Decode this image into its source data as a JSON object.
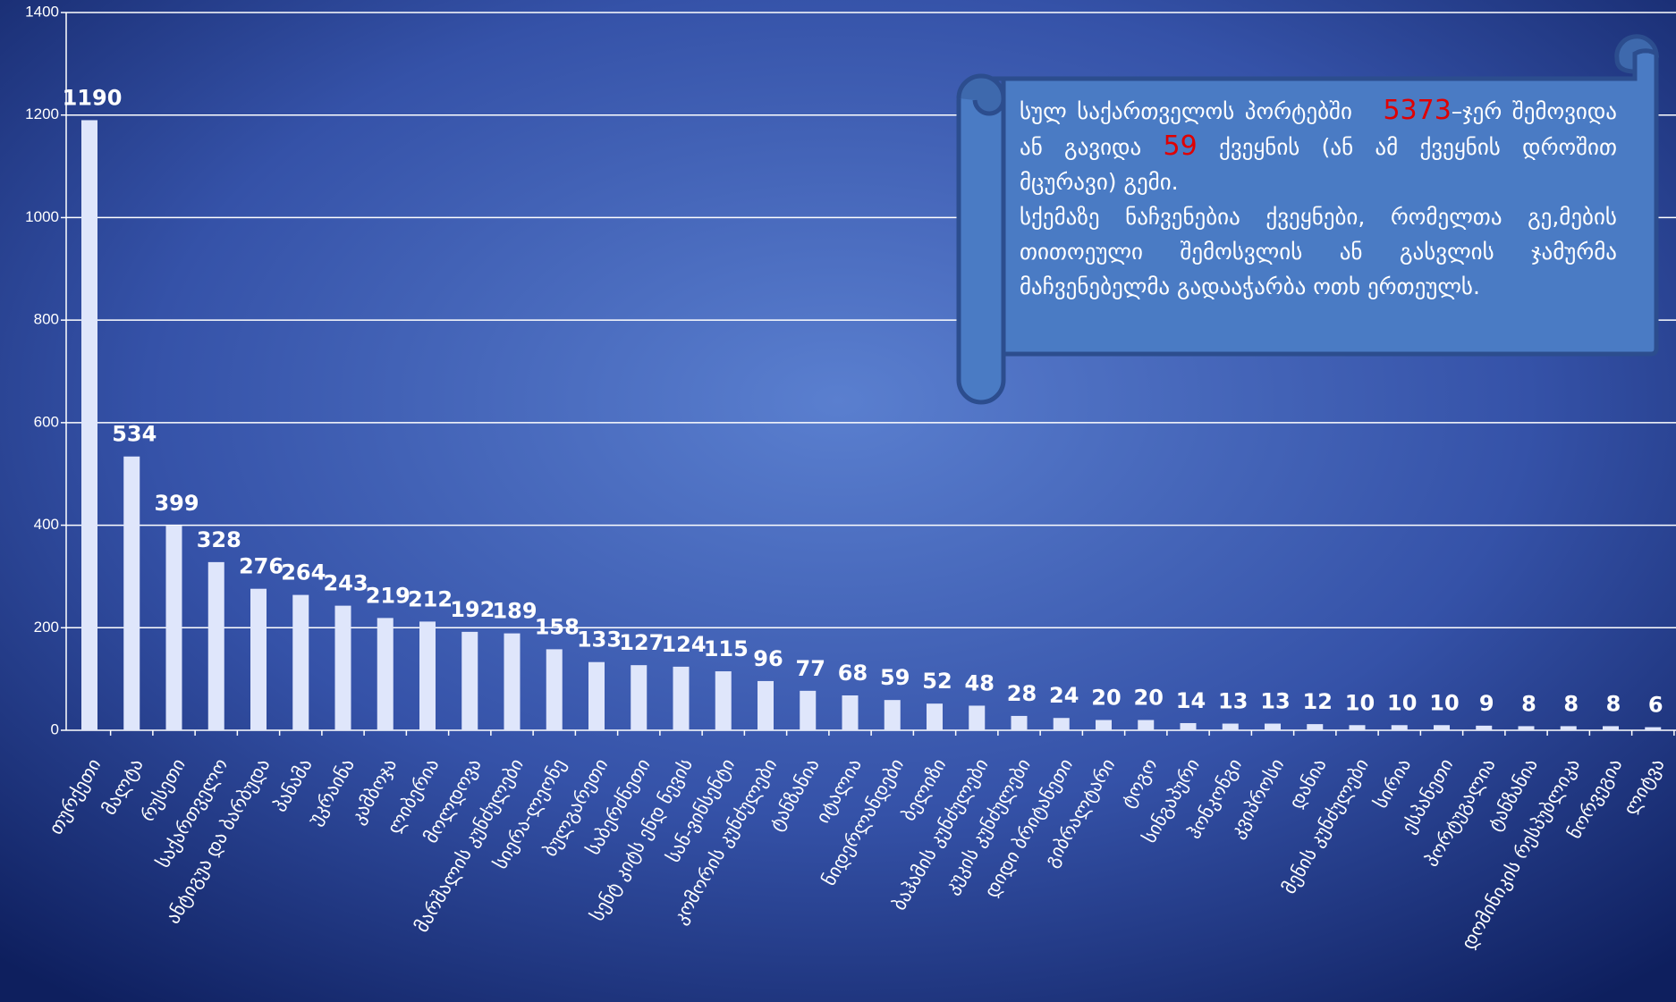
{
  "chart_data": {
    "type": "bar",
    "categories": [
      "თურქეთი",
      "მალტა",
      "რუსეთი",
      "საქართველო",
      "ანტიგუა და ბარბუდა",
      "პანამა",
      "უკრაინა",
      "კამბოჯა",
      "ლიბერია",
      "მოლდოვა",
      "მარშალის კუნძულები",
      "სიერა-ლეონე",
      "ბულგარეთი",
      "საბერძნეთი",
      "სენტ კიტს ენდ ნევის",
      "სან-ვინსენტი",
      "კომორის კუნძულები",
      "ტანზანია",
      "იტალია",
      "ნიდერლანდები",
      "ბელიზი",
      "ბაჰამის კუნძულები",
      "კუკის კუნძულები",
      "დიდი ბრიტანეთი",
      "გიბრალტარი",
      "ტოგო",
      "სინგაპური",
      "ჰონკონგი",
      "კვიპროსი",
      "დანია",
      "მენის კუნძულები",
      "სირია",
      "ესპანეთი",
      "პორტუგალია",
      "ტანზანია",
      "დომინიკის რესპუბლიკა",
      "ნორვეგია",
      "ლიტვა"
    ],
    "values": [
      1190,
      534,
      399,
      328,
      276,
      264,
      243,
      219,
      212,
      192,
      189,
      158,
      133,
      127,
      124,
      115,
      96,
      77,
      68,
      59,
      52,
      48,
      28,
      24,
      20,
      20,
      14,
      13,
      13,
      12,
      10,
      10,
      10,
      9,
      8,
      8,
      8,
      6
    ],
    "color": "#dfe6fb",
    "ylim": [
      0,
      1400
    ],
    "yticks": [
      0,
      200,
      400,
      600,
      800,
      1000,
      1200,
      1400
    ],
    "grid": true,
    "annotation": [
      "სულ საქართველოს პორტებში",
      "5373",
      "–ჯერ შემოვიდა ან გავიდა",
      "59",
      "ქვეყნის (ან ამ ქვეყნის დროშით მცურავი) გემი.",
      "სქემაზე ნაჩვენებია ქვეყნები, რომელთა გე,მების თითოეული შემოსვლის ან გასვლის ჯამურმა მაჩვენებელმა გადააჭარბა ოთხ ერთეულს."
    ]
  }
}
